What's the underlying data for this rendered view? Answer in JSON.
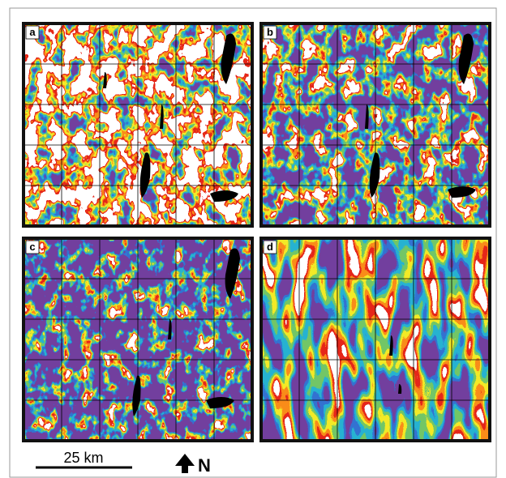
{
  "panels": [
    {
      "label": "a"
    },
    {
      "label": "b"
    },
    {
      "label": "c"
    },
    {
      "label": "d"
    }
  ],
  "scale_bar": {
    "label": "25 km"
  },
  "north_arrow": {
    "label": "N"
  }
}
